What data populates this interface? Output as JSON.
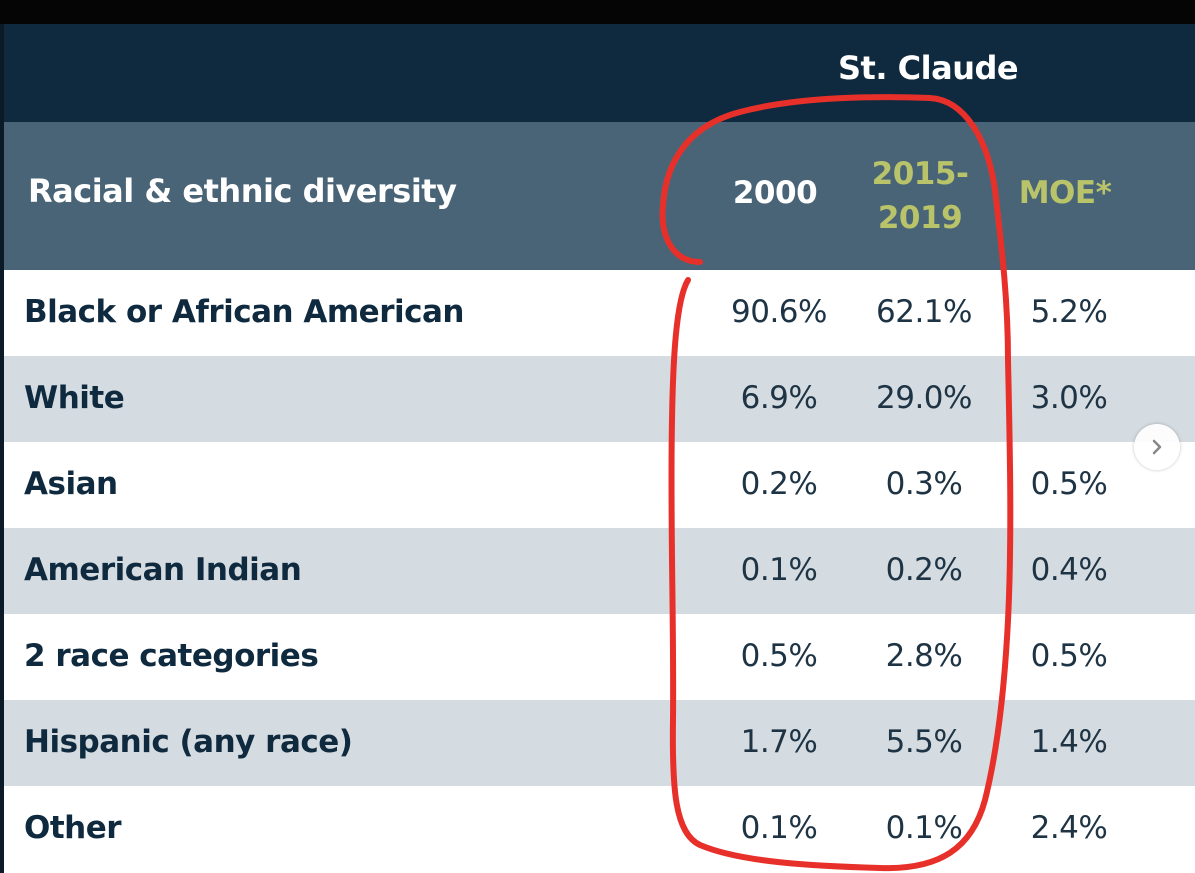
{
  "table": {
    "place": "St. Claude",
    "section_title": "Racial & ethnic diversity",
    "columns": {
      "col_2000": "2000",
      "col_recent_line1": "2015-",
      "col_recent_line2": "2019",
      "col_moe": "MOE*"
    },
    "rows": [
      {
        "label": "Black or African American",
        "v2000": "90.6%",
        "vrecent": "62.1%",
        "moe": "5.2%"
      },
      {
        "label": "White",
        "v2000": "6.9%",
        "vrecent": "29.0%",
        "moe": "3.0%"
      },
      {
        "label": "Asian",
        "v2000": "0.2%",
        "vrecent": "0.3%",
        "moe": "0.5%"
      },
      {
        "label": "American Indian",
        "v2000": "0.1%",
        "vrecent": "0.2%",
        "moe": "0.4%"
      },
      {
        "label": "2 race categories",
        "v2000": "0.5%",
        "vrecent": "2.8%",
        "moe": "0.5%"
      },
      {
        "label": "Hispanic (any race)",
        "v2000": "1.7%",
        "vrecent": "5.5%",
        "moe": "1.4%"
      },
      {
        "label": "Other",
        "v2000": "0.1%",
        "vrecent": "0.1%",
        "moe": "2.4%"
      }
    ]
  },
  "navigation": {
    "next_icon": "chevron-right-icon"
  },
  "colors": {
    "title_band": "#0f2a3e",
    "header_band": "#4a6477",
    "accent_green": "#b9c46a",
    "row_alt": "#d4dbe1",
    "annotation_red": "#e8302a"
  }
}
